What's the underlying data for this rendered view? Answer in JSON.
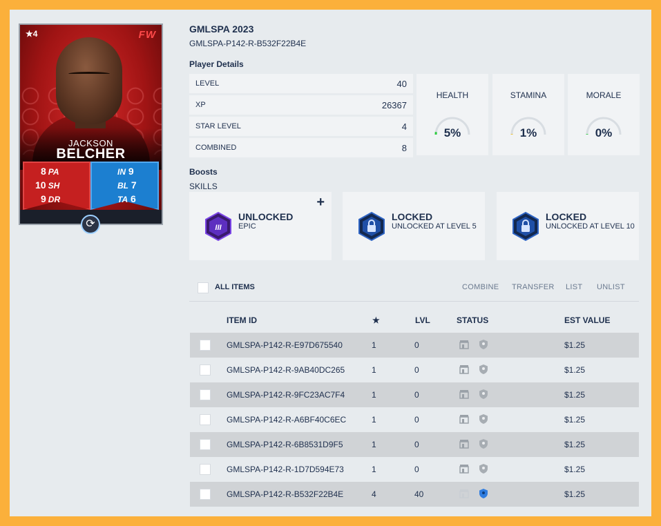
{
  "card": {
    "star_level": "★4",
    "position": "FW",
    "first_name": "JACKSON",
    "last_name": "BELCHER",
    "stats_left": [
      {
        "value": "8",
        "label": "PA"
      },
      {
        "value": "10",
        "label": "SH"
      },
      {
        "value": "9",
        "label": "DR"
      }
    ],
    "stats_right": [
      {
        "value": "9",
        "label": "IN"
      },
      {
        "value": "7",
        "label": "BL"
      },
      {
        "value": "6",
        "label": "TA"
      }
    ],
    "swap_icon": "refresh-icon"
  },
  "header": {
    "title": "GMLSPA 2023",
    "item_id": "GMLSPA-P142-R-B532F22B4E"
  },
  "player_details": {
    "label": "Player Details",
    "rows": [
      {
        "key": "LEVEL",
        "value": "40"
      },
      {
        "key": "XP",
        "value": "26367"
      },
      {
        "key": "STAR LEVEL",
        "value": "4"
      },
      {
        "key": "COMBINED",
        "value": "8"
      }
    ]
  },
  "gauges": [
    {
      "label": "HEALTH",
      "value": "5%",
      "fraction": 0.05,
      "color": "#2ecc40"
    },
    {
      "label": "STAMINA",
      "value": "1%",
      "fraction": 0.01,
      "color": "#f0c020"
    },
    {
      "label": "MORALE",
      "value": "0%",
      "fraction": 0.0,
      "color": "#2ecc40"
    }
  ],
  "boosts": {
    "label": "Boosts",
    "skills_label": "SKILLS",
    "skills": [
      {
        "status": "UNLOCKED",
        "detail": "EPIC",
        "badge_text": "III",
        "color": "#6b2fd6"
      },
      {
        "status": "LOCKED",
        "detail": "UNLOCKED AT LEVEL 5",
        "icon": "lock-icon",
        "color": "#1f4fa6"
      },
      {
        "status": "LOCKED",
        "detail": "UNLOCKED AT LEVEL 10",
        "icon": "lock-icon",
        "color": "#1f4fa6"
      }
    ],
    "add_icon": "plus-icon"
  },
  "items": {
    "select_all_label": "ALL ITEMS",
    "actions": [
      "COMBINE",
      "TRANSFER",
      "LIST",
      "UNLIST"
    ],
    "columns": {
      "item_id": "ITEM ID",
      "star": "★",
      "lvl": "LVL",
      "status": "STATUS",
      "value": "EST VALUE"
    },
    "rows": [
      {
        "id": "GMLSPA-P142-R-E97D675540",
        "star": "1",
        "lvl": "0",
        "value": "$1.25"
      },
      {
        "id": "GMLSPA-P142-R-9AB40DC265",
        "star": "1",
        "lvl": "0",
        "value": "$1.25"
      },
      {
        "id": "GMLSPA-P142-R-9FC23AC7F4",
        "star": "1",
        "lvl": "0",
        "value": "$1.25"
      },
      {
        "id": "GMLSPA-P142-R-A6BF40C6EC",
        "star": "1",
        "lvl": "0",
        "value": "$1.25"
      },
      {
        "id": "GMLSPA-P142-R-6B8531D9F5",
        "star": "1",
        "lvl": "0",
        "value": "$1.25"
      },
      {
        "id": "GMLSPA-P142-R-1D7D594E73",
        "star": "1",
        "lvl": "0",
        "value": "$1.25"
      },
      {
        "id": "GMLSPA-P142-R-B532F22B4E",
        "star": "4",
        "lvl": "40",
        "value": "$1.25"
      }
    ]
  }
}
